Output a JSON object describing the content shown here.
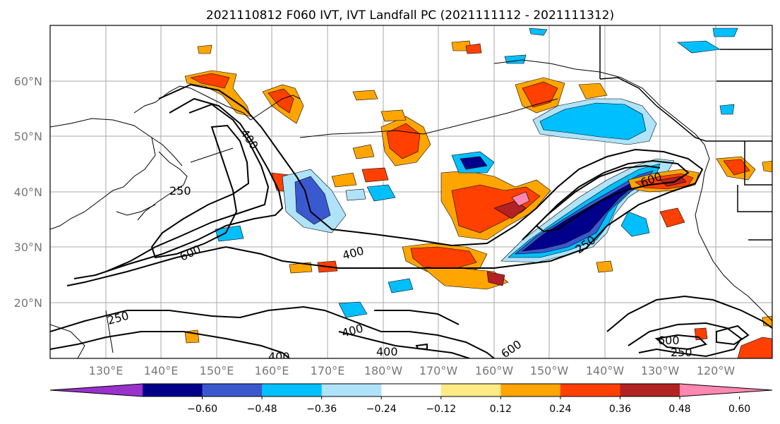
{
  "title": "2021110812 F060 IVT, IVT Landfall PC (2021111112 - 2021111312)",
  "map": {
    "lat_labels": [
      "60°N",
      "50°N",
      "40°N",
      "30°N",
      "20°N"
    ],
    "lon_labels": [
      "130°E",
      "140°E",
      "150°E",
      "160°E",
      "170°E",
      "180°W",
      "170°W",
      "160°W",
      "150°W",
      "140°W",
      "130°W",
      "120°W"
    ],
    "contour_labels": [
      "400",
      "250",
      "600",
      "400",
      "250",
      "400",
      "400",
      "400",
      "600",
      "250",
      "600",
      "600",
      "250"
    ]
  },
  "colorbar": {
    "colors": [
      "#9932cc",
      "#00008b",
      "#3a59cf",
      "#00bfff",
      "#aee3fa",
      "#ffffff",
      "#ffeb85",
      "#ffa500",
      "#ff4000",
      "#b22222",
      "#ff88b0"
    ],
    "ticks": [
      "−0.60",
      "−0.48",
      "−0.36",
      "−0.24",
      "−0.12",
      "0.12",
      "0.24",
      "0.36",
      "0.48",
      "0.60"
    ]
  }
}
